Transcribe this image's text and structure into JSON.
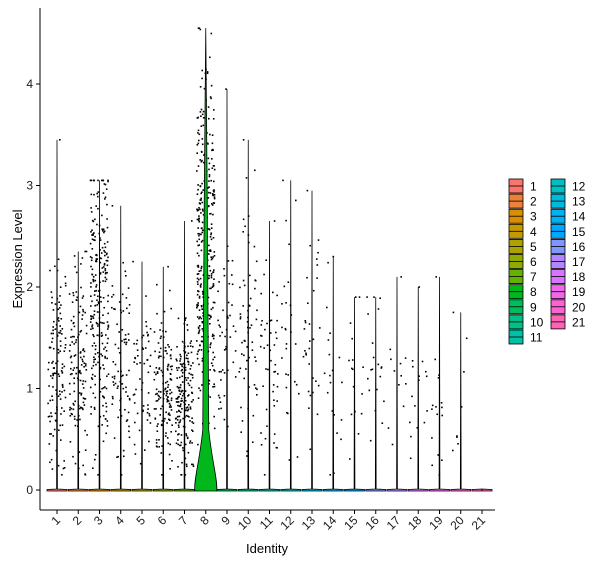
{
  "chart_data": {
    "type": "violin",
    "xlabel": "Identity",
    "ylabel": "Expression Level",
    "ylim": [
      -0.2,
      4.6
    ],
    "yticks": [
      0,
      1,
      2,
      3,
      4
    ],
    "grid": false,
    "legend_position": "right",
    "legend_columns": 2,
    "categories": [
      "1",
      "2",
      "3",
      "4",
      "5",
      "6",
      "7",
      "8",
      "9",
      "10",
      "11",
      "12",
      "13",
      "14",
      "15",
      "16",
      "17",
      "18",
      "19",
      "20",
      "21"
    ],
    "colors": [
      "#F8766D",
      "#EC8239",
      "#DB8E00",
      "#C59900",
      "#AEA200",
      "#8FAA00",
      "#64B200",
      "#00B81B",
      "#00BD5C",
      "#00C085",
      "#00C1A7",
      "#00BFC4",
      "#00BADE",
      "#00B2F3",
      "#00A6FF",
      "#7F96FF",
      "#B385FF",
      "#D874FD",
      "#EF67EB",
      "#FD61D3",
      "#FF63B6"
    ],
    "max_values": [
      3.45,
      2.35,
      3.05,
      2.8,
      2.25,
      2.2,
      2.65,
      4.55,
      3.95,
      3.45,
      2.65,
      3.05,
      2.95,
      2.3,
      1.9,
      1.9,
      2.1,
      2.0,
      2.1,
      1.75,
      0.0
    ],
    "point_density": [
      0.32,
      0.33,
      0.62,
      0.2,
      0.14,
      0.35,
      0.45,
      0.95,
      0.12,
      0.16,
      0.12,
      0.07,
      0.08,
      0.05,
      0.04,
      0.05,
      0.03,
      0.04,
      0.04,
      0.02,
      0.0
    ],
    "mean_nonzero": [
      1.2,
      1.2,
      1.9,
      1.2,
      1.0,
      1.0,
      0.9,
      2.3,
      1.5,
      1.6,
      1.2,
      1.5,
      1.3,
      1.2,
      1.1,
      1.1,
      1.0,
      1.0,
      1.0,
      0.9,
      0.0
    ]
  }
}
